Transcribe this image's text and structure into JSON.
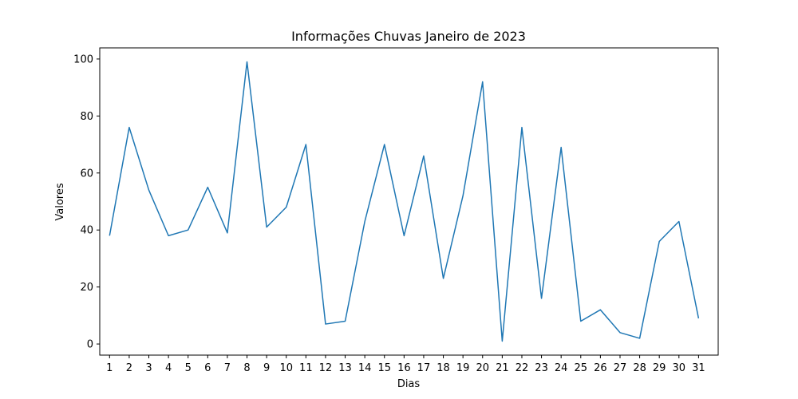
{
  "chart_data": {
    "type": "line",
    "title": "Informações Chuvas Janeiro de 2023",
    "xlabel": "Dias",
    "ylabel": "Valores",
    "x": [
      1,
      2,
      3,
      4,
      5,
      6,
      7,
      8,
      9,
      10,
      11,
      12,
      13,
      14,
      15,
      16,
      17,
      18,
      19,
      20,
      21,
      22,
      23,
      24,
      25,
      26,
      27,
      28,
      29,
      30,
      31
    ],
    "y": [
      38,
      76,
      54,
      38,
      40,
      55,
      39,
      99,
      41,
      48,
      70,
      7,
      8,
      43,
      70,
      38,
      66,
      23,
      52,
      92,
      1,
      76,
      16,
      69,
      8,
      12,
      4,
      2,
      36,
      43,
      9
    ],
    "xticks": [
      "1",
      "2",
      "3",
      "4",
      "5",
      "6",
      "7",
      "8",
      "9",
      "10",
      "11",
      "12",
      "13",
      "14",
      "15",
      "16",
      "17",
      "18",
      "19",
      "20",
      "21",
      "22",
      "23",
      "24",
      "25",
      "26",
      "27",
      "28",
      "29",
      "30",
      "31"
    ],
    "yticks": [
      0,
      20,
      40,
      60,
      80,
      100
    ],
    "ylim": [
      -3.9,
      103.9
    ],
    "xlim": [
      0.5,
      32.0
    ],
    "grid": false,
    "legend": "none",
    "line_color": "#1f77b4"
  }
}
